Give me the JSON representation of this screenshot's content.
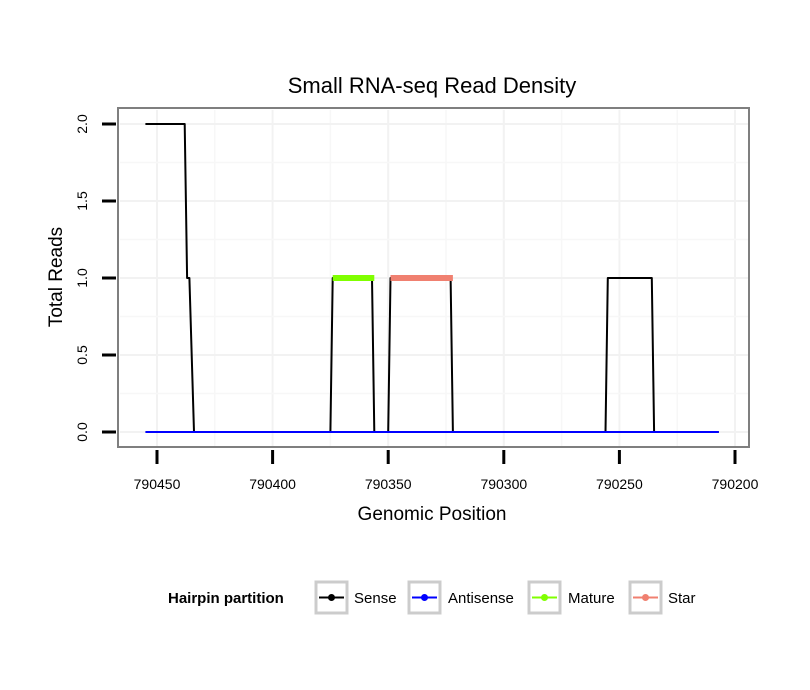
{
  "chart_data": {
    "type": "line",
    "title": "Small RNA-seq Read Density",
    "xlabel": "Genomic Position",
    "ylabel": "Total Reads",
    "xlim": [
      790200,
      790460
    ],
    "x_reversed": true,
    "ylim": [
      0,
      2
    ],
    "x_ticks": [
      790450,
      790400,
      790350,
      790300,
      790250,
      790200
    ],
    "y_ticks": [
      0.0,
      0.5,
      1.0,
      1.5,
      2.0
    ],
    "x_tick_labels": [
      "790450",
      "790400",
      "790350",
      "790300",
      "790250",
      "790200"
    ],
    "y_tick_labels": [
      "0.0",
      "0.5",
      "1.0",
      "1.5",
      "2.0"
    ],
    "grid": true,
    "legend_title": "Hairpin partition",
    "legend_position": "bottom",
    "series": [
      {
        "name": "Sense",
        "color": "#000000",
        "width": 2,
        "points": [
          [
            790455,
            2
          ],
          [
            790438,
            2
          ],
          [
            790437,
            1
          ],
          [
            790436,
            1
          ],
          [
            790434,
            0
          ],
          [
            790375,
            0
          ],
          [
            790374,
            1
          ],
          [
            790357,
            1
          ],
          [
            790356,
            0
          ],
          [
            790350,
            0
          ],
          [
            790349,
            1
          ],
          [
            790323,
            1
          ],
          [
            790322,
            0
          ],
          [
            790256,
            0
          ],
          [
            790255,
            1
          ],
          [
            790236,
            1
          ],
          [
            790235,
            0
          ],
          [
            790207,
            0
          ]
        ]
      },
      {
        "name": "Antisense",
        "color": "#0000ff",
        "width": 2,
        "points": [
          [
            790455,
            0
          ],
          [
            790207,
            0
          ]
        ]
      },
      {
        "name": "Mature",
        "color": "#80ff00",
        "width": 6,
        "points": [
          [
            790374,
            1
          ],
          [
            790356,
            1
          ]
        ]
      },
      {
        "name": "Star",
        "color": "#f08070",
        "width": 6,
        "points": [
          [
            790349,
            1
          ],
          [
            790322,
            1
          ]
        ]
      }
    ]
  }
}
